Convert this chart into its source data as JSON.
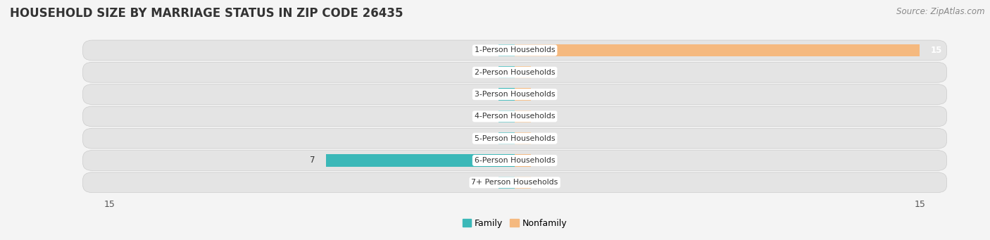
{
  "title": "HOUSEHOLD SIZE BY MARRIAGE STATUS IN ZIP CODE 26435",
  "source": "Source: ZipAtlas.com",
  "categories": [
    "7+ Person Households",
    "6-Person Households",
    "5-Person Households",
    "4-Person Households",
    "3-Person Households",
    "2-Person Households",
    "1-Person Households"
  ],
  "family_values": [
    0,
    7,
    0,
    0,
    0,
    0,
    0
  ],
  "nonfamily_values": [
    0,
    0,
    0,
    0,
    0,
    0,
    15
  ],
  "family_color": "#3BB8B8",
  "nonfamily_color": "#F5B97F",
  "axis_limit": 15,
  "stub_size": 0.6,
  "background_color": "#f4f4f4",
  "row_bg_color": "#e4e4e4",
  "label_bg": "#ffffff",
  "title_fontsize": 12,
  "source_fontsize": 8.5,
  "bar_height": 0.55,
  "legend_family": "Family",
  "legend_nonfamily": "Nonfamily"
}
